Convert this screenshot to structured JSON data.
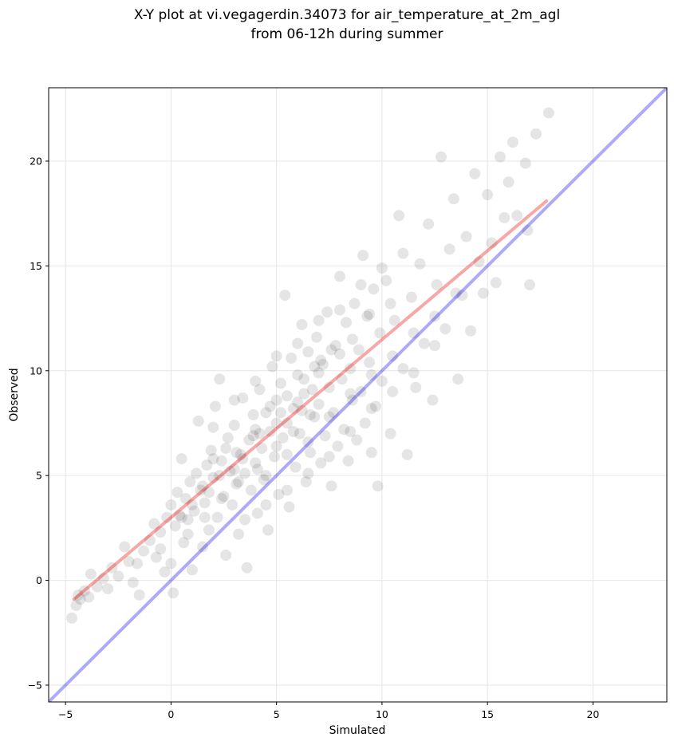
{
  "chart_data": {
    "type": "scatter",
    "title": [
      "X-Y plot at vi.vegagerdin.34073 for air_temperature_at_2m_agl",
      "from 06-12h during summer"
    ],
    "xlabel": "Simulated",
    "ylabel": "Observed",
    "xlim": [
      -5.8,
      23.5
    ],
    "ylim": [
      -5.8,
      23.5
    ],
    "xticks": [
      -5,
      0,
      5,
      10,
      15,
      20
    ],
    "yticks": [
      -5,
      0,
      5,
      10,
      15,
      20
    ],
    "xtick_labels": [
      "−5",
      "0",
      "5",
      "10",
      "15",
      "20"
    ],
    "ytick_labels": [
      "−5",
      "0",
      "5",
      "10",
      "15",
      "20"
    ],
    "grid": true,
    "reference_line": {
      "name": "1:1",
      "x": [
        -5.8,
        23.5
      ],
      "y": [
        -5.8,
        23.5
      ],
      "color": "#0000ee"
    },
    "fit_line": {
      "x": [
        -4.6,
        17.8
      ],
      "y": [
        -0.9,
        18.1
      ],
      "color": "#ee0000"
    },
    "point_color": "#000000",
    "points": [
      [
        -4.7,
        -1.8
      ],
      [
        -4.5,
        -1.2
      ],
      [
        -4.4,
        -0.7
      ],
      [
        -4.3,
        -0.9
      ],
      [
        -4.1,
        -0.5
      ],
      [
        -3.9,
        -0.8
      ],
      [
        -3.8,
        0.3
      ],
      [
        -3.5,
        -0.3
      ],
      [
        -3.2,
        0.1
      ],
      [
        -3.0,
        -0.4
      ],
      [
        -2.8,
        0.6
      ],
      [
        -2.5,
        0.2
      ],
      [
        -2.2,
        1.6
      ],
      [
        -2.0,
        0.9
      ],
      [
        -1.8,
        -0.1
      ],
      [
        -1.6,
        0.8
      ],
      [
        -1.5,
        -0.7
      ],
      [
        -1.3,
        1.4
      ],
      [
        -1.0,
        1.9
      ],
      [
        -0.8,
        2.7
      ],
      [
        -0.7,
        1.1
      ],
      [
        -0.5,
        2.3
      ],
      [
        -0.3,
        0.4
      ],
      [
        -0.2,
        3.0
      ],
      [
        0.0,
        3.6
      ],
      [
        0.1,
        -0.6
      ],
      [
        0.2,
        2.6
      ],
      [
        0.3,
        4.2
      ],
      [
        0.4,
        3.1
      ],
      [
        0.5,
        5.8
      ],
      [
        0.6,
        1.8
      ],
      [
        0.7,
        3.9
      ],
      [
        0.8,
        2.9
      ],
      [
        0.9,
        4.7
      ],
      [
        1.0,
        0.5
      ],
      [
        1.1,
        3.3
      ],
      [
        1.2,
        5.1
      ],
      [
        1.3,
        7.6
      ],
      [
        1.4,
        4.3
      ],
      [
        1.5,
        1.6
      ],
      [
        1.6,
        3.7
      ],
      [
        1.7,
        5.5
      ],
      [
        1.8,
        2.4
      ],
      [
        1.9,
        6.2
      ],
      [
        2.0,
        4.9
      ],
      [
        2.1,
        8.3
      ],
      [
        2.2,
        3.0
      ],
      [
        2.3,
        9.6
      ],
      [
        2.4,
        5.7
      ],
      [
        2.5,
        4.0
      ],
      [
        2.6,
        1.2
      ],
      [
        2.7,
        6.8
      ],
      [
        2.8,
        5.2
      ],
      [
        2.9,
        3.6
      ],
      [
        3.0,
        7.4
      ],
      [
        3.1,
        4.6
      ],
      [
        3.2,
        2.2
      ],
      [
        3.3,
        6.0
      ],
      [
        3.4,
        8.7
      ],
      [
        3.5,
        5.1
      ],
      [
        3.6,
        0.6
      ],
      [
        3.7,
        6.7
      ],
      [
        3.8,
        4.3
      ],
      [
        3.9,
        7.9
      ],
      [
        4.0,
        5.6
      ],
      [
        4.1,
        3.2
      ],
      [
        4.2,
        9.1
      ],
      [
        4.3,
        6.3
      ],
      [
        4.4,
        4.8
      ],
      [
        4.5,
        8.0
      ],
      [
        4.6,
        2.4
      ],
      [
        4.7,
        7.1
      ],
      [
        4.8,
        10.2
      ],
      [
        4.9,
        5.9
      ],
      [
        5.0,
        8.6
      ],
      [
        5.1,
        4.1
      ],
      [
        5.2,
        9.4
      ],
      [
        5.3,
        6.8
      ],
      [
        5.4,
        13.6
      ],
      [
        5.5,
        7.5
      ],
      [
        5.6,
        3.5
      ],
      [
        5.7,
        10.6
      ],
      [
        5.8,
        8.2
      ],
      [
        5.9,
        5.4
      ],
      [
        6.0,
        9.8
      ],
      [
        6.1,
        7.0
      ],
      [
        6.2,
        12.2
      ],
      [
        6.3,
        8.9
      ],
      [
        6.4,
        4.7
      ],
      [
        6.5,
        10.9
      ],
      [
        6.6,
        6.1
      ],
      [
        6.7,
        9.1
      ],
      [
        6.8,
        7.8
      ],
      [
        6.9,
        11.6
      ],
      [
        7.0,
        8.4
      ],
      [
        7.1,
        5.6
      ],
      [
        7.2,
        10.3
      ],
      [
        7.3,
        6.9
      ],
      [
        7.4,
        12.8
      ],
      [
        7.5,
        9.2
      ],
      [
        7.6,
        4.5
      ],
      [
        7.7,
        8.0
      ],
      [
        7.8,
        11.2
      ],
      [
        7.9,
        6.4
      ],
      [
        8.0,
        14.5
      ],
      [
        8.1,
        9.6
      ],
      [
        8.2,
        7.2
      ],
      [
        8.3,
        12.3
      ],
      [
        8.4,
        5.7
      ],
      [
        8.5,
        10.1
      ],
      [
        8.6,
        8.6
      ],
      [
        8.7,
        13.2
      ],
      [
        8.8,
        6.7
      ],
      [
        8.9,
        11.0
      ],
      [
        9.0,
        9.0
      ],
      [
        9.1,
        15.5
      ],
      [
        9.2,
        7.5
      ],
      [
        9.3,
        12.6
      ],
      [
        9.4,
        10.4
      ],
      [
        9.5,
        6.1
      ],
      [
        9.6,
        13.9
      ],
      [
        9.7,
        8.3
      ],
      [
        9.8,
        4.5
      ],
      [
        9.9,
        11.8
      ],
      [
        10.0,
        9.5
      ],
      [
        10.2,
        14.3
      ],
      [
        10.4,
        7.0
      ],
      [
        10.6,
        12.4
      ],
      [
        10.8,
        17.4
      ],
      [
        11.0,
        10.1
      ],
      [
        11.2,
        6.0
      ],
      [
        11.4,
        13.5
      ],
      [
        11.6,
        9.2
      ],
      [
        11.8,
        15.1
      ],
      [
        12.0,
        11.3
      ],
      [
        12.2,
        17.0
      ],
      [
        12.4,
        8.6
      ],
      [
        12.6,
        14.1
      ],
      [
        12.8,
        20.2
      ],
      [
        13.0,
        12.0
      ],
      [
        13.2,
        15.8
      ],
      [
        13.4,
        18.2
      ],
      [
        13.6,
        9.6
      ],
      [
        13.8,
        13.6
      ],
      [
        14.0,
        16.4
      ],
      [
        14.2,
        11.9
      ],
      [
        14.4,
        19.4
      ],
      [
        14.6,
        15.2
      ],
      [
        14.8,
        13.7
      ],
      [
        15.0,
        18.4
      ],
      [
        15.2,
        16.1
      ],
      [
        15.4,
        14.2
      ],
      [
        15.6,
        20.2
      ],
      [
        15.8,
        17.3
      ],
      [
        16.0,
        19.0
      ],
      [
        16.2,
        20.9
      ],
      [
        16.4,
        17.4
      ],
      [
        16.8,
        19.9
      ],
      [
        16.9,
        16.7
      ],
      [
        17.0,
        14.1
      ],
      [
        17.3,
        21.3
      ],
      [
        17.9,
        22.3
      ],
      [
        1.5,
        4.5
      ],
      [
        2.3,
        5.0
      ],
      [
        3.1,
        6.1
      ],
      [
        3.9,
        6.9
      ],
      [
        4.7,
        8.3
      ],
      [
        5.5,
        8.8
      ],
      [
        6.3,
        9.6
      ],
      [
        7.1,
        10.5
      ],
      [
        1.0,
        3.6
      ],
      [
        2.0,
        5.8
      ],
      [
        3.0,
        5.3
      ],
      [
        4.0,
        7.2
      ],
      [
        5.0,
        7.5
      ],
      [
        6.0,
        8.5
      ],
      [
        7.0,
        9.9
      ],
      [
        8.0,
        10.8
      ],
      [
        0.5,
        3.0
      ],
      [
        1.8,
        4.2
      ],
      [
        2.6,
        6.3
      ],
      [
        3.4,
        5.8
      ],
      [
        4.2,
        7.0
      ],
      [
        5.2,
        8.0
      ],
      [
        6.2,
        8.1
      ],
      [
        6.8,
        10.2
      ],
      [
        7.6,
        11.0
      ],
      [
        8.6,
        11.5
      ],
      [
        9.4,
        12.7
      ],
      [
        10.4,
        13.2
      ],
      [
        4.5,
        5.0
      ],
      [
        5.5,
        6.0
      ],
      [
        6.5,
        6.6
      ],
      [
        7.5,
        7.8
      ],
      [
        8.5,
        8.9
      ],
      [
        9.5,
        9.8
      ],
      [
        10.5,
        10.7
      ],
      [
        11.5,
        11.8
      ],
      [
        12.5,
        12.6
      ],
      [
        13.5,
        13.7
      ],
      [
        -0.5,
        1.5
      ],
      [
        0.0,
        0.8
      ],
      [
        0.8,
        2.2
      ],
      [
        1.6,
        3.0
      ],
      [
        2.4,
        3.9
      ],
      [
        3.2,
        4.7
      ],
      [
        4.1,
        5.3
      ],
      [
        5.0,
        6.4
      ],
      [
        5.8,
        7.1
      ],
      [
        6.6,
        7.9
      ],
      [
        2.0,
        7.3
      ],
      [
        3.0,
        8.6
      ],
      [
        4.0,
        9.5
      ],
      [
        5.0,
        10.7
      ],
      [
        6.0,
        11.3
      ],
      [
        7.0,
        12.4
      ],
      [
        8.0,
        12.9
      ],
      [
        9.0,
        14.1
      ],
      [
        10.0,
        14.9
      ],
      [
        11.0,
        15.6
      ],
      [
        3.5,
        2.9
      ],
      [
        4.5,
        3.6
      ],
      [
        5.5,
        4.3
      ],
      [
        6.5,
        5.1
      ],
      [
        7.5,
        5.9
      ],
      [
        8.5,
        7.1
      ],
      [
        9.5,
        8.2
      ],
      [
        10.5,
        9.0
      ],
      [
        11.5,
        9.9
      ],
      [
        12.5,
        11.2
      ]
    ]
  }
}
